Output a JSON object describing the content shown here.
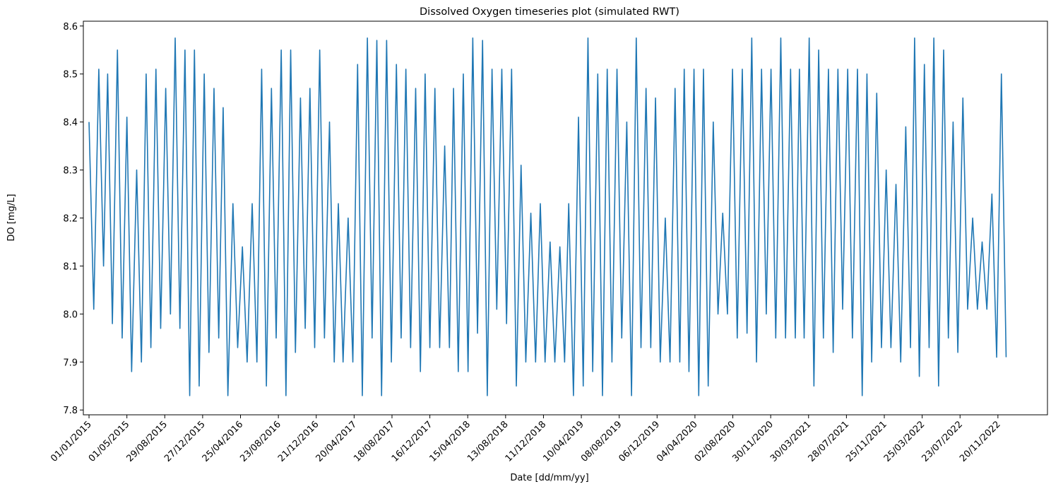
{
  "chart_data": {
    "type": "line",
    "title": "Dissolved Oxygen timeseries plot (simulated RWT)",
    "x_label": "Date [dd/mm/yy]",
    "y_label": "DO [mg/L]",
    "color": "#1f77b4",
    "x": [
      "2015-01-01",
      "2015-01-16",
      "2015-02-01",
      "2015-02-16",
      "2015-03-01",
      "2015-03-16",
      "2015-04-01",
      "2015-04-16",
      "2015-05-01",
      "2015-05-16",
      "2015-06-01",
      "2015-06-16",
      "2015-07-01",
      "2015-07-16",
      "2015-08-01",
      "2015-08-16",
      "2015-09-01",
      "2015-09-16",
      "2015-10-01",
      "2015-10-16",
      "2015-11-01",
      "2015-11-16",
      "2015-12-01",
      "2015-12-16",
      "2016-01-01",
      "2016-01-16",
      "2016-02-01",
      "2016-02-16",
      "2016-03-01",
      "2016-03-16",
      "2016-04-01",
      "2016-04-16",
      "2016-05-01",
      "2016-05-16",
      "2016-06-01",
      "2016-06-16",
      "2016-07-01",
      "2016-07-16",
      "2016-08-01",
      "2016-08-16",
      "2016-09-01",
      "2016-09-16",
      "2016-10-01",
      "2016-10-16",
      "2016-11-01",
      "2016-11-16",
      "2016-12-01",
      "2016-12-16",
      "2017-01-01",
      "2017-01-16",
      "2017-02-01",
      "2017-02-16",
      "2017-03-01",
      "2017-03-16",
      "2017-04-01",
      "2017-04-16",
      "2017-05-01",
      "2017-05-16",
      "2017-06-01",
      "2017-06-16",
      "2017-07-01",
      "2017-07-16",
      "2017-08-01",
      "2017-08-16",
      "2017-09-01",
      "2017-09-16",
      "2017-10-01",
      "2017-10-16",
      "2017-11-01",
      "2017-11-16",
      "2017-12-01",
      "2017-12-16",
      "2018-01-01",
      "2018-01-16",
      "2018-02-01",
      "2018-02-16",
      "2018-03-01",
      "2018-03-16",
      "2018-04-01",
      "2018-04-16",
      "2018-05-01",
      "2018-05-16",
      "2018-06-01",
      "2018-06-16",
      "2018-07-01",
      "2018-07-16",
      "2018-08-01",
      "2018-08-16",
      "2018-09-01",
      "2018-09-16",
      "2018-10-01",
      "2018-10-16",
      "2018-11-01",
      "2018-11-16",
      "2018-12-01",
      "2018-12-16",
      "2019-01-01",
      "2019-01-16",
      "2019-02-01",
      "2019-02-16",
      "2019-03-01",
      "2019-03-16",
      "2019-04-01",
      "2019-04-16",
      "2019-05-01",
      "2019-05-16",
      "2019-06-01",
      "2019-06-16",
      "2019-07-01",
      "2019-07-16",
      "2019-08-01",
      "2019-08-16",
      "2019-09-01",
      "2019-09-16",
      "2019-10-01",
      "2019-10-16",
      "2019-11-01",
      "2019-11-16",
      "2019-12-01",
      "2019-12-16",
      "2020-01-01",
      "2020-01-16",
      "2020-02-01",
      "2020-02-16",
      "2020-03-01",
      "2020-03-16",
      "2020-04-01",
      "2020-04-16",
      "2020-05-01",
      "2020-05-16",
      "2020-06-01",
      "2020-06-16",
      "2020-07-01",
      "2020-07-16",
      "2020-08-01",
      "2020-08-16",
      "2020-09-01",
      "2020-09-16",
      "2020-10-01",
      "2020-10-16",
      "2020-11-01",
      "2020-11-16",
      "2020-12-01",
      "2020-12-16",
      "2021-01-01",
      "2021-01-16",
      "2021-02-01",
      "2021-02-16",
      "2021-03-01",
      "2021-03-16",
      "2021-04-01",
      "2021-04-16",
      "2021-05-01",
      "2021-05-16",
      "2021-06-01",
      "2021-06-16",
      "2021-07-01",
      "2021-07-16",
      "2021-08-01",
      "2021-08-16",
      "2021-09-01",
      "2021-09-16",
      "2021-10-01",
      "2021-10-16",
      "2021-11-01",
      "2021-11-16",
      "2021-12-01",
      "2021-12-16",
      "2022-01-01",
      "2022-01-16",
      "2022-02-01",
      "2022-02-16",
      "2022-03-01",
      "2022-03-16",
      "2022-04-01",
      "2022-04-16",
      "2022-05-01",
      "2022-05-16",
      "2022-06-01",
      "2022-06-16",
      "2022-07-01",
      "2022-07-16",
      "2022-08-01",
      "2022-08-16",
      "2022-09-01",
      "2022-09-16",
      "2022-10-01",
      "2022-10-16",
      "2022-11-01",
      "2022-11-16",
      "2022-12-01",
      "2022-12-16"
    ],
    "values": [
      8.4,
      8.01,
      8.51,
      8.1,
      8.5,
      7.98,
      8.55,
      7.95,
      8.41,
      7.88,
      8.3,
      7.9,
      8.5,
      7.93,
      8.51,
      7.97,
      8.47,
      8.0,
      8.575,
      7.97,
      8.55,
      7.83,
      8.55,
      7.85,
      8.5,
      7.92,
      8.47,
      7.95,
      8.43,
      7.83,
      8.23,
      7.93,
      8.14,
      7.9,
      8.23,
      7.9,
      8.51,
      7.85,
      8.47,
      7.95,
      8.55,
      7.83,
      8.55,
      7.92,
      8.45,
      7.97,
      8.47,
      7.93,
      8.55,
      7.95,
      8.4,
      7.9,
      8.23,
      7.9,
      8.2,
      7.9,
      8.52,
      7.83,
      8.575,
      7.95,
      8.57,
      7.83,
      8.57,
      7.9,
      8.52,
      7.95,
      8.51,
      7.93,
      8.47,
      7.88,
      8.5,
      7.93,
      8.47,
      7.93,
      8.35,
      7.93,
      8.47,
      7.88,
      8.5,
      7.88,
      8.575,
      7.96,
      8.57,
      7.83,
      8.51,
      8.01,
      8.51,
      7.98,
      8.51,
      7.85,
      8.31,
      7.9,
      8.21,
      7.9,
      8.23,
      7.9,
      8.15,
      7.9,
      8.14,
      7.9,
      8.23,
      7.83,
      8.41,
      7.85,
      8.575,
      7.88,
      8.5,
      7.83,
      8.51,
      7.9,
      8.51,
      7.95,
      8.4,
      7.83,
      8.575,
      7.93,
      8.47,
      7.93,
      8.45,
      7.9,
      8.2,
      7.9,
      8.47,
      7.9,
      8.51,
      7.88,
      8.51,
      7.83,
      8.51,
      7.85,
      8.4,
      8.0,
      8.21,
      8.0,
      8.51,
      7.95,
      8.51,
      7.96,
      8.575,
      7.9,
      8.51,
      8.0,
      8.51,
      7.95,
      8.575,
      7.95,
      8.51,
      7.95,
      8.51,
      7.95,
      8.575,
      7.85,
      8.55,
      7.95,
      8.51,
      7.92,
      8.51,
      8.01,
      8.51,
      7.95,
      8.51,
      7.83,
      8.5,
      7.9,
      8.46,
      7.93,
      8.3,
      7.93,
      8.27,
      7.9,
      8.39,
      7.93,
      8.575,
      7.87,
      8.52,
      7.93,
      8.575,
      7.85,
      8.55,
      7.95,
      8.4,
      7.92,
      8.45,
      8.01,
      8.2,
      8.01,
      8.15,
      8.01,
      8.25,
      7.91,
      8.5,
      7.91
    ],
    "xlim": [
      "2014-12-14",
      "2023-04-26"
    ],
    "xticks": [
      {
        "value": "2015-01-01",
        "label": "01/01/2015"
      },
      {
        "value": "2015-05-01",
        "label": "01/05/2015"
      },
      {
        "value": "2015-08-29",
        "label": "29/08/2015"
      },
      {
        "value": "2015-12-27",
        "label": "27/12/2015"
      },
      {
        "value": "2016-04-25",
        "label": "25/04/2016"
      },
      {
        "value": "2016-08-23",
        "label": "23/08/2016"
      },
      {
        "value": "2016-12-21",
        "label": "21/12/2016"
      },
      {
        "value": "2017-04-20",
        "label": "20/04/2017"
      },
      {
        "value": "2017-08-18",
        "label": "18/08/2017"
      },
      {
        "value": "2017-12-16",
        "label": "16/12/2017"
      },
      {
        "value": "2018-04-15",
        "label": "15/04/2018"
      },
      {
        "value": "2018-08-13",
        "label": "13/08/2018"
      },
      {
        "value": "2018-12-11",
        "label": "11/12/2018"
      },
      {
        "value": "2019-04-10",
        "label": "10/04/2019"
      },
      {
        "value": "2019-08-08",
        "label": "08/08/2019"
      },
      {
        "value": "2019-12-06",
        "label": "06/12/2019"
      },
      {
        "value": "2020-04-04",
        "label": "04/04/2020"
      },
      {
        "value": "2020-08-02",
        "label": "02/08/2020"
      },
      {
        "value": "2020-11-30",
        "label": "30/11/2020"
      },
      {
        "value": "2021-03-30",
        "label": "30/03/2021"
      },
      {
        "value": "2021-07-28",
        "label": "28/07/2021"
      },
      {
        "value": "2021-11-25",
        "label": "25/11/2021"
      },
      {
        "value": "2022-03-25",
        "label": "25/03/2022"
      },
      {
        "value": "2022-07-23",
        "label": "23/07/2022"
      },
      {
        "value": "2022-11-20",
        "label": "20/11/2022"
      }
    ],
    "ylim": [
      7.79,
      8.61
    ],
    "yticks": [
      7.8,
      7.9,
      {
        "value": 8,
        "label": "8.0"
      },
      8.1,
      8.2,
      8.3,
      8.4,
      8.5,
      8.6
    ],
    "grid": false
  }
}
